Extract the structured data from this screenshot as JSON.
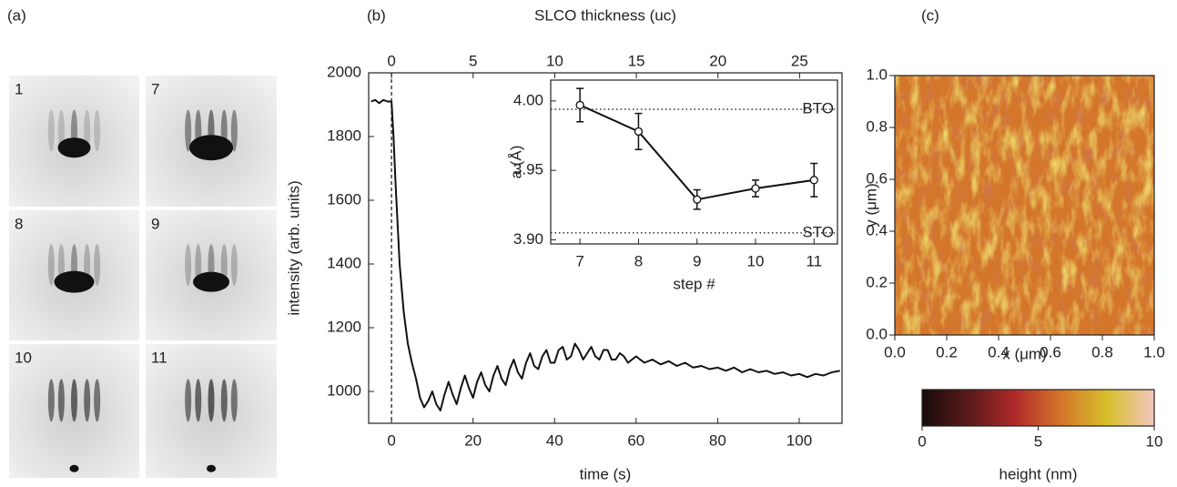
{
  "panel_labels": [
    "(a)",
    "(b)",
    "(c)"
  ],
  "rheed_images": {
    "labels": [
      "1",
      "7",
      "8",
      "9",
      "10",
      "11"
    ]
  },
  "chart_data": [
    {
      "type": "line",
      "x_label": "time (s)",
      "y_label": "intensity (arb. units)",
      "x2_label": "SLCO thickness (uc)",
      "x": [
        -5,
        -4,
        -3,
        -2,
        -1,
        0,
        0.5,
        1,
        2,
        3,
        4,
        5,
        6,
        7,
        8,
        9,
        10,
        11,
        12,
        13,
        14,
        15,
        16,
        17,
        18,
        19,
        20,
        21,
        22,
        23,
        24,
        25,
        26,
        27,
        28,
        29,
        30,
        31,
        32,
        33,
        34,
        35,
        36,
        37,
        38,
        39,
        40,
        41,
        42,
        43,
        44,
        45,
        46,
        47,
        48,
        49,
        50,
        51,
        52,
        53,
        54,
        55,
        56,
        57,
        58,
        59,
        60,
        62,
        64,
        66,
        68,
        70,
        72,
        74,
        76,
        78,
        80,
        82,
        84,
        86,
        88,
        90,
        92,
        94,
        96,
        98,
        100,
        102,
        104,
        106,
        108,
        110
      ],
      "series": [
        {
          "color": "#111111",
          "values": [
            1910,
            1915,
            1905,
            1915,
            1910,
            1910,
            1800,
            1650,
            1400,
            1250,
            1150,
            1090,
            1040,
            980,
            950,
            970,
            1000,
            960,
            940,
            990,
            1030,
            990,
            960,
            1010,
            1050,
            1010,
            980,
            1030,
            1060,
            1020,
            1000,
            1050,
            1080,
            1040,
            1020,
            1070,
            1100,
            1060,
            1040,
            1090,
            1120,
            1080,
            1070,
            1110,
            1130,
            1090,
            1090,
            1130,
            1140,
            1100,
            1110,
            1150,
            1130,
            1100,
            1120,
            1140,
            1110,
            1100,
            1130,
            1130,
            1100,
            1100,
            1120,
            1110,
            1090,
            1100,
            1110,
            1090,
            1100,
            1085,
            1095,
            1080,
            1090,
            1075,
            1080,
            1070,
            1075,
            1065,
            1075,
            1060,
            1070,
            1060,
            1065,
            1055,
            1060,
            1050,
            1055,
            1045,
            1055,
            1050,
            1060,
            1065
          ]
        }
      ],
      "xlim": [
        -5.6,
        110.5
      ],
      "ylim": [
        900,
        2000
      ],
      "xticks": [
        0,
        20,
        40,
        60,
        80,
        100
      ],
      "yticks": [
        1000,
        1200,
        1400,
        1600,
        1800,
        2000
      ],
      "x2lim": [
        -1.4,
        27.6
      ],
      "x2ticks": [
        0,
        5,
        10,
        15,
        20,
        25
      ],
      "vline_x": 0
    },
    {
      "type": "errorbar",
      "x_label": "step #",
      "y_label": "a (Å)",
      "x": [
        7,
        8,
        9,
        10,
        11
      ],
      "series": [
        {
          "color": "#111111",
          "values": [
            3.997,
            3.978,
            3.929,
            3.937,
            3.943
          ],
          "errors": [
            0.012,
            0.013,
            0.007,
            0.006,
            0.012
          ]
        }
      ],
      "reference_lines": [
        {
          "label": "BTO",
          "value": 3.994
        },
        {
          "label": "STO",
          "value": 3.905
        }
      ],
      "xlim": [
        6.5,
        11.4
      ],
      "ylim": [
        3.897,
        4.015
      ],
      "xticks": [
        7,
        8,
        9,
        10,
        11
      ],
      "yticks": [
        {
          "value": 3.9,
          "label": "3.90"
        },
        3.95,
        {
          "value": 4,
          "label": "4.00"
        }
      ]
    },
    {
      "type": "heatmap",
      "x_label": "x (μm)",
      "y_label": "y (μm)",
      "xlim": [
        0,
        1
      ],
      "ylim": [
        0,
        1
      ],
      "xticks": [
        {
          "value": 0,
          "label": "0.0"
        },
        0.2,
        0.4,
        0.6,
        0.8,
        {
          "value": 1,
          "label": "1.0"
        }
      ],
      "yticks": [
        {
          "value": 0,
          "label": "0.0"
        },
        0.2,
        0.4,
        0.6,
        0.8,
        {
          "value": 1,
          "label": "1.0"
        }
      ],
      "colorbar": {
        "label": "height (nm)",
        "lim": [
          0,
          10
        ],
        "ticks": [
          0,
          5,
          10
        ],
        "colors": [
          "#1a0a0a",
          "#5a1a1a",
          "#b02a2a",
          "#d4762a",
          "#d6c02c",
          "#f2c6c0"
        ]
      }
    }
  ]
}
